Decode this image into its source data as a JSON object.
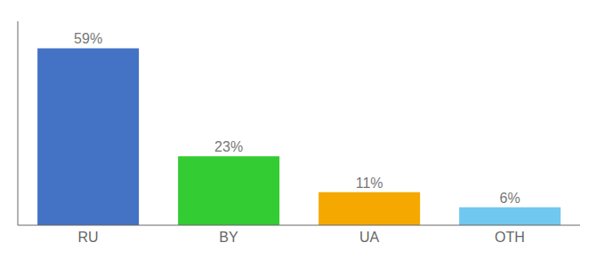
{
  "chart_data": {
    "type": "bar",
    "categories": [
      "RU",
      "BY",
      "UA",
      "OTH"
    ],
    "values": [
      59,
      23,
      11,
      6
    ],
    "value_labels": [
      "59%",
      "23%",
      "11%",
      "6%"
    ],
    "colors": [
      "#4472c4",
      "#33cc33",
      "#f5a800",
      "#70c8f0"
    ],
    "ylim": [
      0,
      68
    ],
    "data_labels": true,
    "tick_labels": "x"
  }
}
